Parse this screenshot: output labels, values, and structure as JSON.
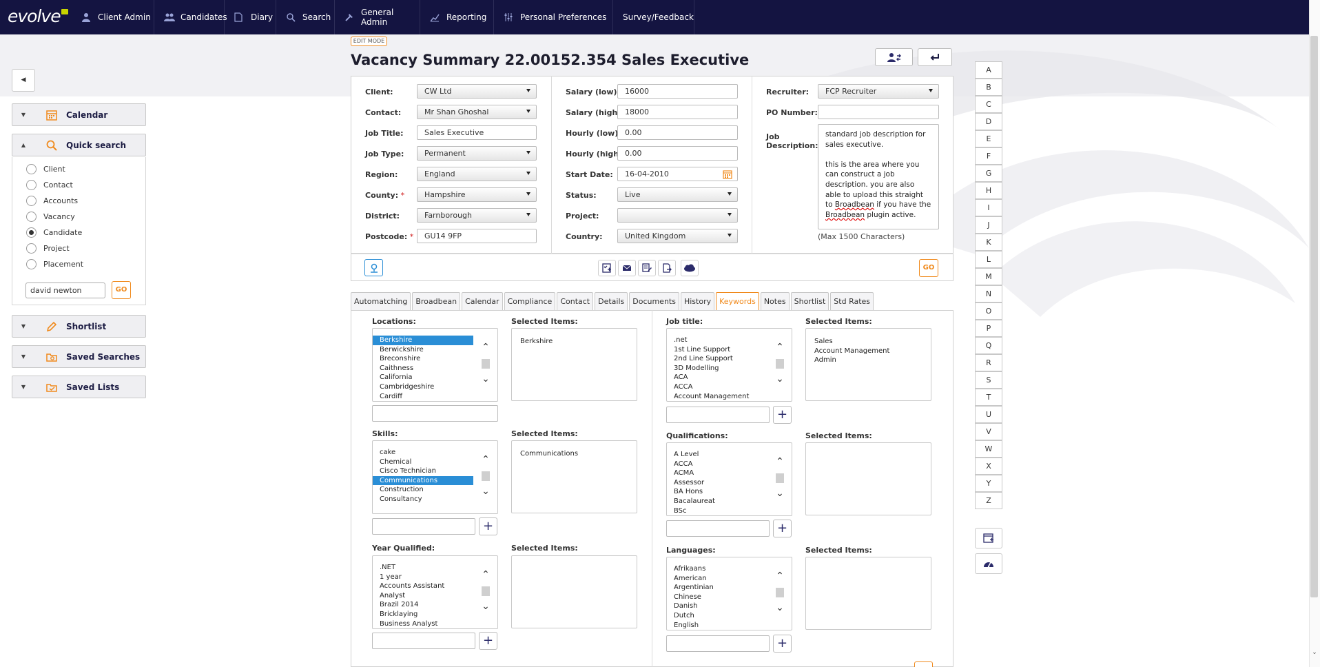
{
  "app": {
    "logo_text": "evolve"
  },
  "nav": [
    {
      "label": "Client Admin",
      "icon": "user-icon"
    },
    {
      "label": "Candidates",
      "icon": "users-icon"
    },
    {
      "label": "Diary",
      "icon": "document-icon"
    },
    {
      "label": "Search",
      "icon": "search-icon"
    },
    {
      "label": "General Admin",
      "icon": "hammer-icon"
    },
    {
      "label": "Reporting",
      "icon": "chart-icon"
    },
    {
      "label": "Personal Preferences",
      "icon": "sliders-icon"
    },
    {
      "label": "Survey/Feedback",
      "icon": ""
    }
  ],
  "sidebar": {
    "calendar_label": "Calendar",
    "quick_search_label": "Quick search",
    "radio_options": [
      "Client",
      "Contact",
      "Accounts",
      "Vacancy",
      "Candidate",
      "Project",
      "Placement"
    ],
    "radio_selected": "Candidate",
    "search_value": "david newton",
    "go_label": "GO",
    "shortlist_label": "Shortlist",
    "saved_searches_label": "Saved Searches",
    "saved_lists_label": "Saved Lists"
  },
  "header": {
    "edit_mode": "EDIT MODE",
    "title": "Vacancy Summary 22.00152.354 Sales Executive"
  },
  "form": {
    "col1": [
      {
        "label": "Client:",
        "value": "CW Ltd",
        "type": "select",
        "required": false
      },
      {
        "label": "Contact:",
        "value": "Mr Shan Ghoshal",
        "type": "select",
        "required": false
      },
      {
        "label": "Job Title:",
        "value": "Sales Executive",
        "type": "input",
        "required": false
      },
      {
        "label": "Job Type:",
        "value": "Permanent",
        "type": "select",
        "required": false
      },
      {
        "label": "Region:",
        "value": "England",
        "type": "select",
        "required": false
      },
      {
        "label": "County:",
        "value": "Hampshire",
        "type": "select",
        "required": true
      },
      {
        "label": "District:",
        "value": "Farnborough",
        "type": "select",
        "required": false
      },
      {
        "label": "Postcode:",
        "value": "GU14 9FP",
        "type": "input",
        "required": true
      }
    ],
    "col2": [
      {
        "label": "Salary (low):",
        "value": "16000",
        "type": "input"
      },
      {
        "label": "Salary (high):",
        "value": "18000",
        "type": "input"
      },
      {
        "label": "Hourly (low):",
        "value": "0.00",
        "type": "input"
      },
      {
        "label": "Hourly (high):",
        "value": "0.00",
        "type": "input"
      },
      {
        "label": "Start Date:",
        "value": "16-04-2010",
        "type": "date"
      },
      {
        "label": "Status:",
        "value": "Live",
        "type": "select"
      },
      {
        "label": "Project:",
        "value": "",
        "type": "select"
      },
      {
        "label": "Country:",
        "value": "United Kingdom",
        "type": "select"
      }
    ],
    "recruiter_label": "Recruiter:",
    "recruiter_value": "FCP Recruiter",
    "po_label": "PO Number:",
    "po_value": "",
    "jd_label_1": "Job",
    "jd_label_2": "Description:",
    "jd_p1": "standard job description for sales executive.",
    "jd_p2a": "this is the area where you can construct a job description. you are also able to upload this straight to ",
    "jd_broadbean": "Broadbean",
    "jd_p2b": " if you have the ",
    "jd_p2c": " plugin active.",
    "jd_max": "(Max 1500 Characters)",
    "go_label": "GO"
  },
  "tabs": [
    "Automatching",
    "Broadbean",
    "Calendar",
    "Compliance",
    "Contact",
    "Details",
    "Documents",
    "History",
    "Keywords",
    "Notes",
    "Shortlist",
    "Std Rates"
  ],
  "active_tab": "Keywords",
  "keywords": {
    "selected_label": "Selected Items:",
    "locations": {
      "label": "Locations:",
      "items": [
        "Berkshire",
        "Berwickshire",
        "Breconshire",
        "Caithness",
        "California",
        "Cambridgeshire",
        "Cardiff"
      ],
      "highlighted": "Berkshire",
      "selected": [
        "Berkshire"
      ]
    },
    "skills": {
      "label": "Skills:",
      "items": [
        "cake",
        "Chemical",
        "Cisco Technician",
        "Communications",
        "Construction",
        "Consultancy"
      ],
      "highlighted": "Communications",
      "selected": [
        "Communications"
      ]
    },
    "year_qualified": {
      "label": "Year Qualified:",
      "items": [
        ".NET",
        "1 year",
        "Accounts Assistant",
        "Analyst",
        "Brazil 2014",
        "Bricklaying",
        "Business Analyst"
      ],
      "highlighted": "",
      "selected": []
    },
    "job_title": {
      "label": "Job title:",
      "items": [
        ".net",
        "1st Line Support",
        "2nd Line Support",
        "3D Modelling",
        "ACA",
        "ACCA",
        "Account Management"
      ],
      "highlighted": "",
      "selected": [
        "Sales",
        "Account Management",
        "Admin"
      ]
    },
    "qualifications": {
      "label": "Qualifications:",
      "items": [
        "A Level",
        "ACCA",
        "ACMA",
        "Assessor",
        "BA Hons",
        "Bacalaureat",
        "BSc"
      ],
      "highlighted": "",
      "selected": []
    },
    "languages": {
      "label": "Languages:",
      "items": [
        "Afrikaans",
        "American",
        "Argentinian",
        "Chinese",
        "Danish",
        "Dutch",
        "English"
      ],
      "highlighted": "",
      "selected": []
    }
  },
  "alphabet": [
    "A",
    "B",
    "C",
    "D",
    "E",
    "F",
    "G",
    "H",
    "I",
    "J",
    "K",
    "L",
    "M",
    "N",
    "O",
    "P",
    "Q",
    "R",
    "S",
    "T",
    "U",
    "V",
    "W",
    "X",
    "Y",
    "Z"
  ],
  "colors": {
    "nav_bg": "#141441",
    "accent": "#f08a1c",
    "highlight": "#2a8ed6"
  }
}
